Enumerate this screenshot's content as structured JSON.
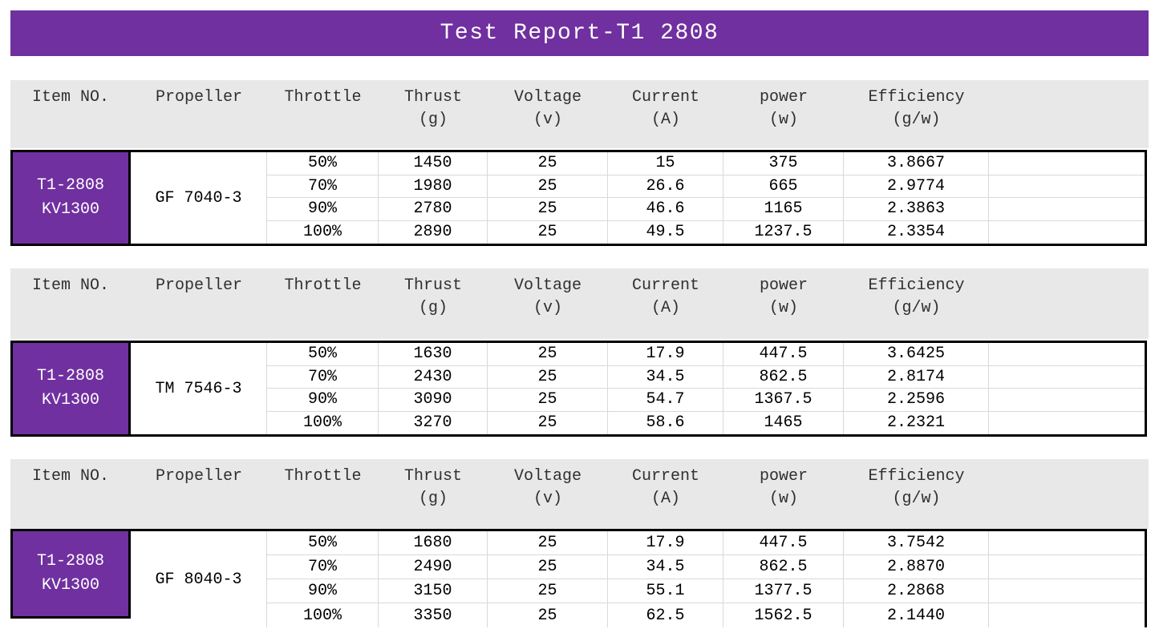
{
  "title": "Test Report-T1 2808",
  "colors": {
    "banner_purple": "#7030a0",
    "item_cell_purple": "#7030a0",
    "header_band_gray": "#e8e8e8",
    "gridline_gray": "#d9d9d9",
    "table_border_black": "#000000",
    "banner_text": "#ffffff"
  },
  "columns": [
    {
      "label": "Item NO.",
      "unit": ""
    },
    {
      "label": "Propeller",
      "unit": ""
    },
    {
      "label": "Throttle",
      "unit": ""
    },
    {
      "label": "Thrust",
      "unit": "(g)"
    },
    {
      "label": "Voltage",
      "unit": "(v)"
    },
    {
      "label": "Current",
      "unit": "(A)"
    },
    {
      "label": "power",
      "unit": "(w)"
    },
    {
      "label": "Efficiency",
      "unit": "(g/w)"
    },
    {
      "label": "",
      "unit": ""
    }
  ],
  "sections": [
    {
      "item_line1": "T1-2808",
      "item_line2": "KV1300",
      "propeller": "GF 7040-3",
      "rows": [
        [
          "50%",
          "1450",
          "25",
          "15",
          "375",
          "3.8667"
        ],
        [
          "70%",
          "1980",
          "25",
          "26.6",
          "665",
          "2.9774"
        ],
        [
          "90%",
          "2780",
          "25",
          "46.6",
          "1165",
          "2.3863"
        ],
        [
          "100%",
          "2890",
          "25",
          "49.5",
          "1237.5",
          "2.3354"
        ]
      ]
    },
    {
      "item_line1": "T1-2808",
      "item_line2": "KV1300",
      "propeller": "TM 7546-3",
      "rows": [
        [
          "50%",
          "1630",
          "25",
          "17.9",
          "447.5",
          "3.6425"
        ],
        [
          "70%",
          "2430",
          "25",
          "34.5",
          "862.5",
          "2.8174"
        ],
        [
          "90%",
          "3090",
          "25",
          "54.7",
          "1367.5",
          "2.2596"
        ],
        [
          "100%",
          "3270",
          "25",
          "58.6",
          "1465",
          "2.2321"
        ]
      ]
    },
    {
      "item_line1": "T1-2808",
      "item_line2": "KV1300",
      "propeller": "GF 8040-3",
      "rows": [
        [
          "50%",
          "1680",
          "25",
          "17.9",
          "447.5",
          "3.7542"
        ],
        [
          "70%",
          "2490",
          "25",
          "34.5",
          "862.5",
          "2.8870"
        ],
        [
          "90%",
          "3150",
          "25",
          "55.1",
          "1377.5",
          "2.2868"
        ],
        [
          "100%",
          "3350",
          "25",
          "62.5",
          "1562.5",
          "2.1440"
        ]
      ]
    }
  ]
}
